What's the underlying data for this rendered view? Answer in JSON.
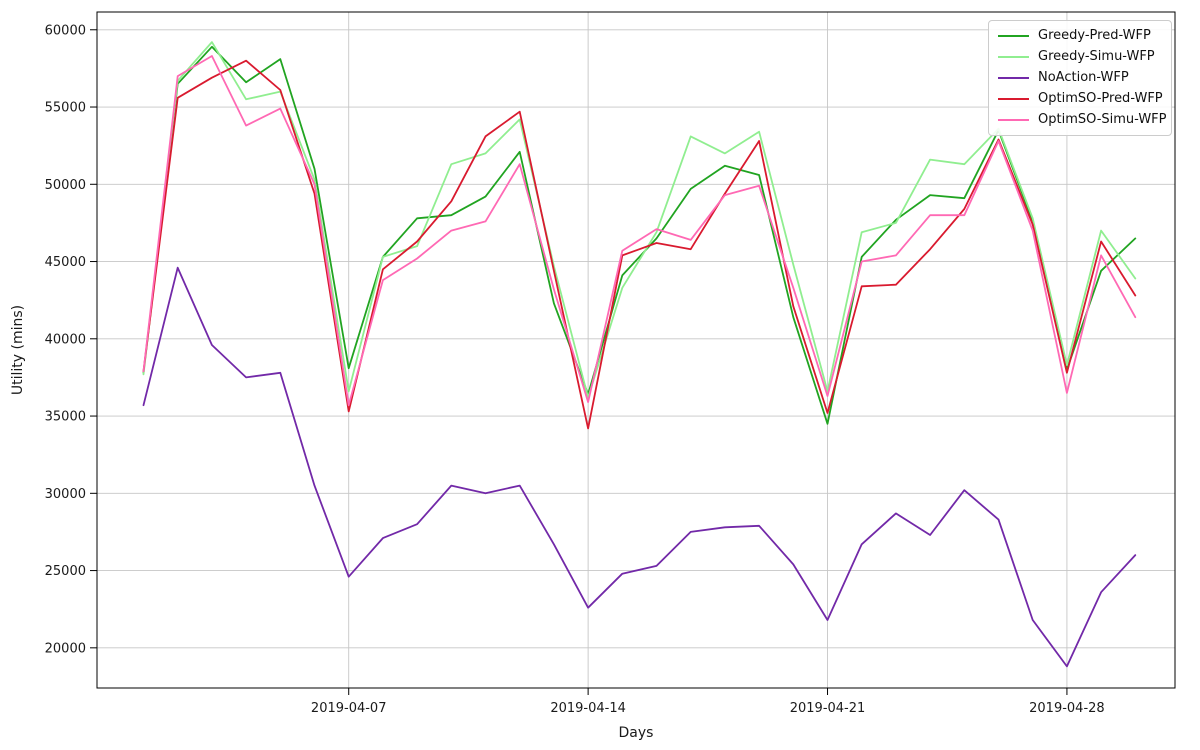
{
  "chart_data": {
    "type": "line",
    "title": "",
    "xlabel": "Days",
    "ylabel": "Utility (mins)",
    "grid": true,
    "legend_position": "upper right",
    "x": [
      "2019-04-01",
      "2019-04-02",
      "2019-04-03",
      "2019-04-04",
      "2019-04-05",
      "2019-04-06",
      "2019-04-07",
      "2019-04-08",
      "2019-04-09",
      "2019-04-10",
      "2019-04-11",
      "2019-04-12",
      "2019-04-13",
      "2019-04-14",
      "2019-04-15",
      "2019-04-16",
      "2019-04-17",
      "2019-04-18",
      "2019-04-19",
      "2019-04-20",
      "2019-04-21",
      "2019-04-22",
      "2019-04-23",
      "2019-04-24",
      "2019-04-25",
      "2019-04-26",
      "2019-04-27",
      "2019-04-28",
      "2019-04-29",
      "2019-04-30"
    ],
    "xtick_indices": [
      6,
      13,
      20,
      27
    ],
    "xtick_labels": [
      "2019-04-07",
      "2019-04-14",
      "2019-04-21",
      "2019-04-28"
    ],
    "yticks": [
      20000,
      25000,
      30000,
      35000,
      40000,
      45000,
      50000,
      55000,
      60000
    ],
    "ylim": [
      17400,
      61150
    ],
    "xlim_day_offsets": [
      -1.36,
      30.16
    ],
    "series": [
      {
        "name": "Greedy-Pred-WFP",
        "color": "#21a421",
        "values": [
          37800,
          56500,
          58900,
          56600,
          58100,
          51000,
          38100,
          45300,
          47800,
          48000,
          49200,
          52100,
          42300,
          36400,
          44100,
          46500,
          49700,
          51200,
          50600,
          41400,
          34500,
          45300,
          47700,
          49300,
          49100,
          53500,
          47600,
          38000,
          44400,
          46500
        ]
      },
      {
        "name": "Greedy-Simu-WFP",
        "color": "#90ee90",
        "values": [
          37700,
          56700,
          59200,
          55500,
          56000,
          50300,
          36600,
          45300,
          46000,
          51300,
          52000,
          54200,
          44700,
          36200,
          43300,
          46900,
          53100,
          52000,
          53400,
          44800,
          36600,
          46900,
          47500,
          51600,
          51300,
          53600,
          47800,
          38300,
          47000,
          43900
        ]
      },
      {
        "name": "NoAction-WFP",
        "color": "#7229a8",
        "values": [
          35700,
          44600,
          39600,
          37500,
          37800,
          30500,
          24600,
          27100,
          28000,
          30500,
          30000,
          30500,
          26700,
          22600,
          24800,
          25300,
          27500,
          27800,
          27900,
          25400,
          21800,
          26700,
          28700,
          27300,
          30200,
          28300,
          21800,
          18800,
          23600,
          26000
        ]
      },
      {
        "name": "OptimSO-Pred-WFP",
        "color": "#d91a2f",
        "values": [
          37900,
          55600,
          56900,
          58000,
          56100,
          49400,
          35300,
          44500,
          46300,
          48900,
          53100,
          54700,
          44400,
          34200,
          45400,
          46200,
          45800,
          49400,
          52800,
          42100,
          35200,
          43400,
          43500,
          45800,
          48400,
          52900,
          47400,
          37800,
          46300,
          42800
        ]
      },
      {
        "name": "OptimSO-Simu-WFP",
        "color": "#ff69b4",
        "values": [
          37900,
          57000,
          58300,
          53800,
          54900,
          50000,
          35700,
          43800,
          45200,
          47000,
          47600,
          51300,
          43200,
          35900,
          45700,
          47100,
          46400,
          49300,
          49900,
          43300,
          36300,
          45000,
          45400,
          48000,
          48000,
          52800,
          47000,
          36500,
          45400,
          41400
        ]
      }
    ]
  }
}
